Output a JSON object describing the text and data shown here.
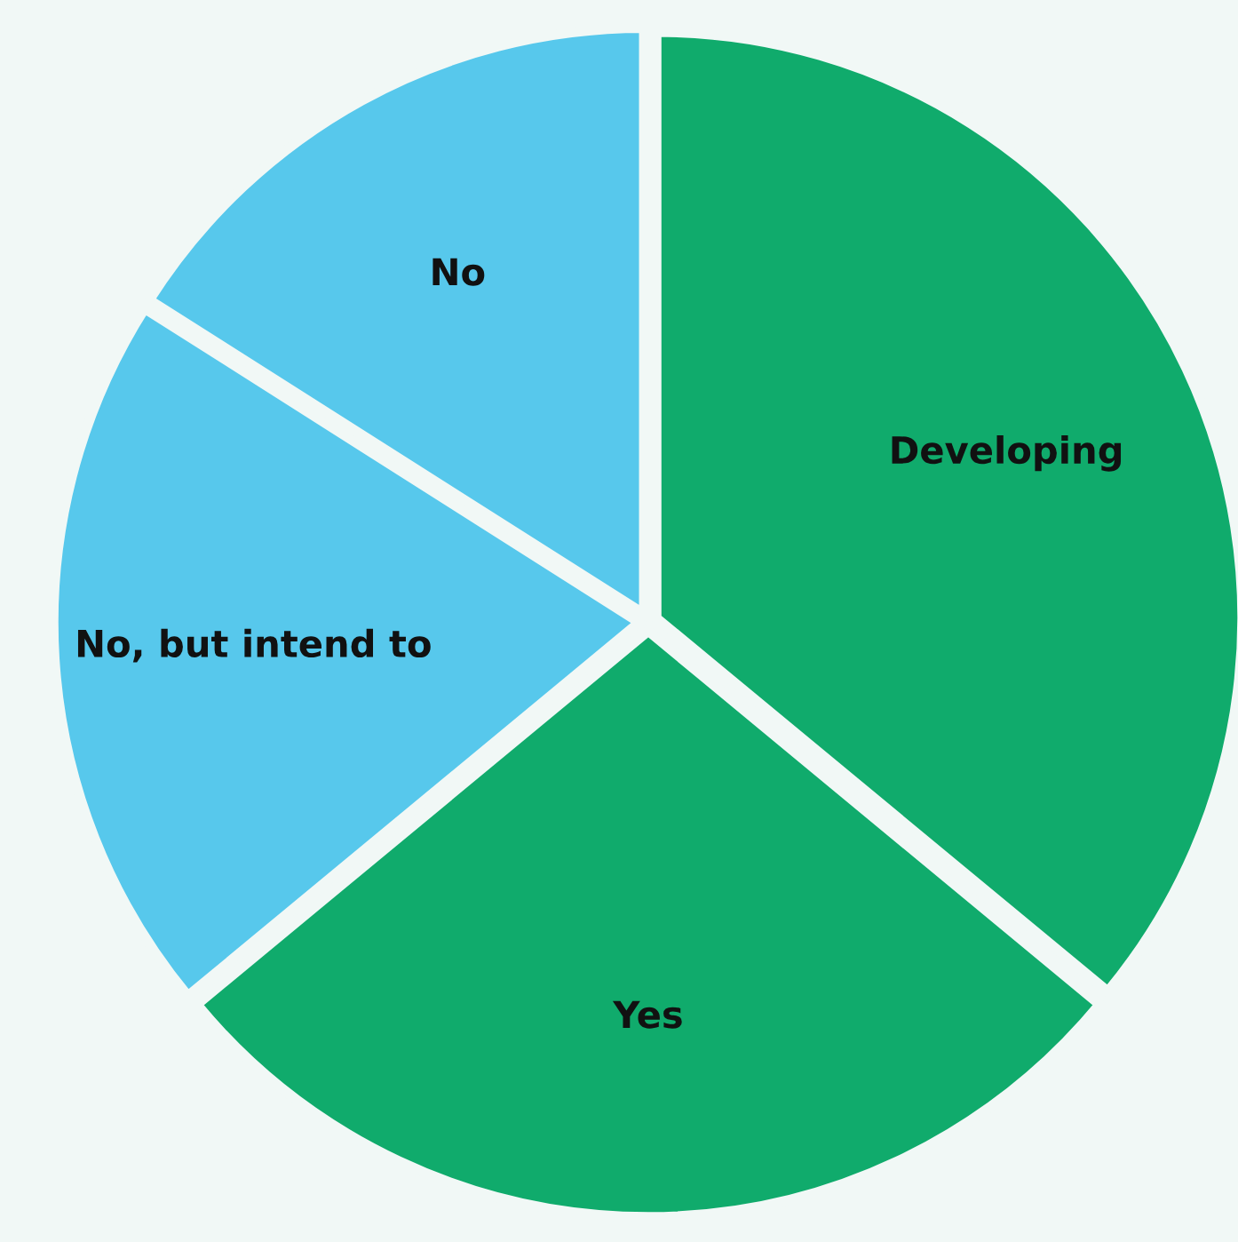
{
  "chart_data": {
    "type": "pie",
    "categories": [
      "Developing",
      "Yes",
      "No, but intend to",
      "No"
    ],
    "values": [
      36,
      28,
      20,
      16
    ],
    "colors": [
      "#10ab6c",
      "#10ab6c",
      "#57c8ec",
      "#57c8ec"
    ]
  }
}
